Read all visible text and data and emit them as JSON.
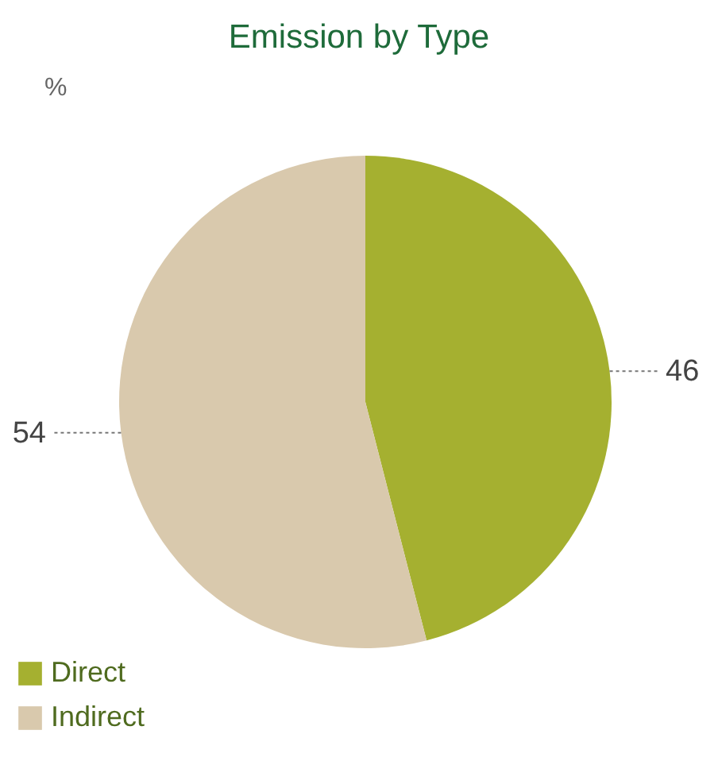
{
  "chart_data": {
    "type": "pie",
    "title": "Emission by Type",
    "annotations": [
      "%"
    ],
    "categories": [
      "Direct",
      "Indirect"
    ],
    "values": [
      46,
      54
    ],
    "colors": [
      "#a5b030",
      "#d9c9ad"
    ],
    "data_labels": true,
    "legend": "bottom left"
  }
}
